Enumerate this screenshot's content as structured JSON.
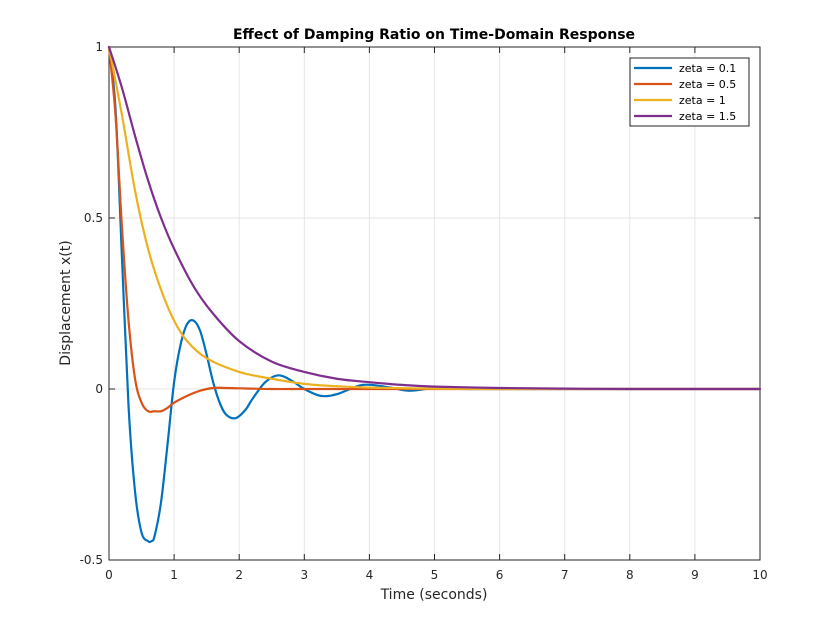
{
  "chart_data": {
    "type": "line",
    "title": "Effect of Damping Ratio on Time-Domain Response",
    "xlabel": "Time (seconds)",
    "ylabel": "Displacement x(t)",
    "xlim": [
      0,
      10
    ],
    "ylim": [
      -0.5,
      1
    ],
    "xticks": [
      0,
      1,
      2,
      3,
      4,
      5,
      6,
      7,
      8,
      9,
      10
    ],
    "xtick_labels": [
      "0",
      "1",
      "2",
      "3",
      "4",
      "5",
      "6",
      "7",
      "8",
      "9",
      "10"
    ],
    "yticks": [
      -0.5,
      0,
      0.5,
      1
    ],
    "ytick_labels": [
      "-0.5",
      "0",
      "0.5",
      "1"
    ],
    "grid": true,
    "legend_position": "top-right",
    "series": [
      {
        "name": "zeta = 0.1",
        "color": "#0072BD",
        "x": [
          0,
          0.1,
          0.2,
          0.3,
          0.4,
          0.5,
          0.6,
          0.65,
          0.7,
          0.8,
          0.9,
          1.0,
          1.1,
          1.2,
          1.3,
          1.4,
          1.5,
          1.6,
          1.7,
          1.8,
          1.95,
          2.1,
          2.2,
          2.4,
          2.6,
          2.8,
          3.0,
          3.25,
          3.5,
          3.9,
          4.3,
          4.6,
          5.0,
          5.5,
          6.0,
          7.0,
          8.0,
          10.0
        ],
        "y": [
          1.0,
          0.82,
          0.38,
          -0.05,
          -0.3,
          -0.42,
          -0.445,
          -0.445,
          -0.43,
          -0.33,
          -0.16,
          0.02,
          0.13,
          0.19,
          0.2,
          0.17,
          0.1,
          0.02,
          -0.04,
          -0.075,
          -0.085,
          -0.06,
          -0.03,
          0.02,
          0.04,
          0.025,
          0.0,
          -0.02,
          -0.015,
          0.012,
          0.005,
          -0.005,
          0.002,
          0.0,
          0.0,
          0.0,
          0.0,
          0.0
        ]
      },
      {
        "name": "zeta = 0.5",
        "color": "#D95319",
        "x": [
          0,
          0.1,
          0.2,
          0.3,
          0.4,
          0.5,
          0.6,
          0.7,
          0.8,
          0.9,
          1.0,
          1.2,
          1.4,
          1.6,
          1.8,
          2.0,
          2.5,
          3.0,
          4.0,
          5.0,
          10.0
        ],
        "y": [
          1.0,
          0.8,
          0.47,
          0.2,
          0.03,
          -0.04,
          -0.065,
          -0.065,
          -0.065,
          -0.055,
          -0.04,
          -0.02,
          -0.005,
          0.003,
          0.003,
          0.002,
          0.0,
          0.0,
          0.0,
          0.0,
          0.0
        ]
      },
      {
        "name": "zeta = 1",
        "color": "#EDB120",
        "x": [
          0,
          0.2,
          0.4,
          0.6,
          0.8,
          1.0,
          1.2,
          1.5,
          2.0,
          2.5,
          3.0,
          3.5,
          4.0,
          5.0,
          6.0,
          7.0,
          8.0,
          10.0
        ],
        "y": [
          1.0,
          0.8,
          0.58,
          0.41,
          0.29,
          0.2,
          0.14,
          0.09,
          0.05,
          0.03,
          0.015,
          0.008,
          0.004,
          0.001,
          0.0,
          0.0,
          0.0,
          0.0
        ]
      },
      {
        "name": "zeta = 1.5",
        "color": "#7E2F8E",
        "x": [
          0,
          0.2,
          0.4,
          0.6,
          0.8,
          1.0,
          1.3,
          1.6,
          2.0,
          2.5,
          3.0,
          3.5,
          4.0,
          4.5,
          5.0,
          6.0,
          7.0,
          8.0,
          10.0
        ],
        "y": [
          1.0,
          0.88,
          0.74,
          0.61,
          0.5,
          0.41,
          0.3,
          0.22,
          0.14,
          0.08,
          0.05,
          0.03,
          0.02,
          0.012,
          0.007,
          0.003,
          0.001,
          0.0,
          0.0
        ]
      }
    ]
  }
}
